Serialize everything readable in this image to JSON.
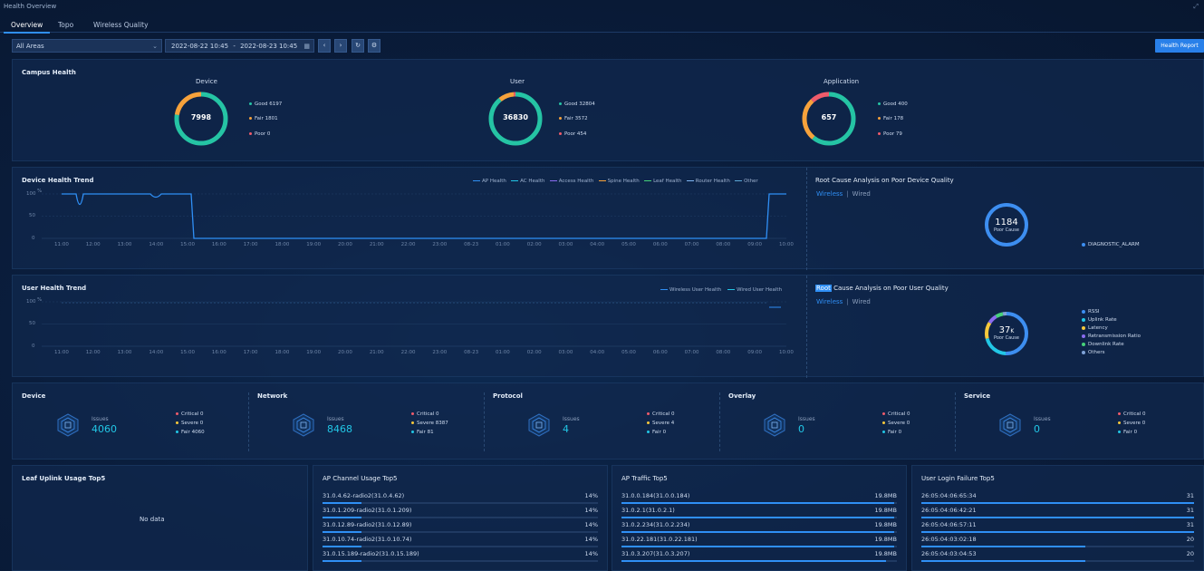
{
  "window": {
    "title": "Health Overview"
  },
  "tabs": [
    {
      "label": "Overview",
      "active": true
    },
    {
      "label": "Topo",
      "active": false
    },
    {
      "label": "Wireless Quality",
      "active": false
    }
  ],
  "toolbar": {
    "area_select": "All Areas",
    "date_start": "2022-08-22 10:45",
    "date_sep": "-",
    "date_end": "2022-08-23 10:45",
    "report_label": "Health Report"
  },
  "campus": {
    "title": "Campus Health",
    "device": {
      "title": "Device",
      "total": "7998",
      "good": "Good 6197",
      "fair": "Fair 1801",
      "poor": "Poor 0",
      "good_v": 6197,
      "fair_v": 1801,
      "poor_v": 0
    },
    "user": {
      "title": "User",
      "total": "36830",
      "good": "Good 32804",
      "fair": "Fair 3572",
      "poor": "Poor 454",
      "good_v": 32804,
      "fair_v": 3572,
      "poor_v": 454
    },
    "application": {
      "title": "Application",
      "total": "657",
      "good": "Good 400",
      "fair": "Fair 178",
      "poor": "Poor 79",
      "good_v": 400,
      "fair_v": 178,
      "poor_v": 79
    }
  },
  "colors": {
    "good": "#25c4a4",
    "fair": "#f7a23b",
    "poor": "#ef5b6b",
    "accent": "#2f8ff5",
    "cyan": "#22c7e6"
  },
  "device_trend": {
    "title": "Device Health Trend",
    "legend": [
      "AP Health",
      "AC Health",
      "Access Health",
      "Spine Health",
      "Leaf Health",
      "Router Health",
      "Other"
    ],
    "y_ticks": [
      "100",
      "50",
      "0"
    ],
    "y_unit": "%",
    "x_ticks": [
      "11:00",
      "12:00",
      "13:00",
      "14:00",
      "15:00",
      "16:00",
      "17:00",
      "18:00",
      "19:00",
      "20:00",
      "21:00",
      "22:00",
      "23:00",
      "08-23",
      "01:00",
      "02:00",
      "03:00",
      "04:00",
      "05:00",
      "06:00",
      "07:00",
      "08:00",
      "09:00",
      "10:00"
    ]
  },
  "user_trend": {
    "title": "User Health Trend",
    "legend": [
      "Wireless User Health",
      "Wired User Health"
    ],
    "y_ticks": [
      "100",
      "50",
      "0"
    ],
    "y_unit": "%",
    "x_ticks": [
      "11:00",
      "12:00",
      "13:00",
      "14:00",
      "15:00",
      "16:00",
      "17:00",
      "18:00",
      "19:00",
      "20:00",
      "21:00",
      "22:00",
      "23:00",
      "08-23",
      "01:00",
      "02:00",
      "03:00",
      "04:00",
      "05:00",
      "06:00",
      "07:00",
      "08:00",
      "09:00",
      "10:00"
    ]
  },
  "rca_device": {
    "title": "Root Cause Analysis on Poor Device Quality",
    "tab_wireless": "Wireless",
    "tab_sep": "|",
    "tab_wired": "Wired",
    "value": "1184",
    "sublabel": "Poor Cause",
    "legend": [
      {
        "label": "DIAGNOSTIC_ALARM",
        "color": "#3d8ef0"
      }
    ]
  },
  "rca_user": {
    "title_prefix": "Root",
    "title_rest": " Cause Analysis on Poor User Quality",
    "tab_wireless": "Wireless",
    "tab_sep": "|",
    "tab_wired": "Wired",
    "value": "37",
    "value_unit": "K",
    "sublabel": "Poor Cause",
    "legend": [
      {
        "label": "RSSI",
        "color": "#3d8ef0"
      },
      {
        "label": "Uplink Rate",
        "color": "#22c7e6"
      },
      {
        "label": "Latency",
        "color": "#f7c83b"
      },
      {
        "label": "Retransmission Ratio",
        "color": "#8a6cf0"
      },
      {
        "label": "Downlink Rate",
        "color": "#46d27a"
      },
      {
        "label": "Others",
        "color": "#7fa2d6"
      }
    ]
  },
  "issues": [
    {
      "title": "Device",
      "label": "Issues",
      "count": "4060",
      "critical": "Critical  0",
      "severe": "Severe  0",
      "fair": "Fair  4060"
    },
    {
      "title": "Network",
      "label": "Issues",
      "count": "8468",
      "critical": "Critical  0",
      "severe": "Severe  8387",
      "fair": "Fair  81"
    },
    {
      "title": "Protocol",
      "label": "Issues",
      "count": "4",
      "critical": "Critical  0",
      "severe": "Severe  4",
      "fair": "Fair  0"
    },
    {
      "title": "Overlay",
      "label": "Issues",
      "count": "0",
      "critical": "Critical  0",
      "severe": "Severe  0",
      "fair": "Fair  0"
    },
    {
      "title": "Service",
      "label": "Issues",
      "count": "0",
      "critical": "Critical  0",
      "severe": "Severe  0",
      "fair": "Fair  0"
    }
  ],
  "leaf_uplink": {
    "title": "Leaf Uplink Usage Top5",
    "empty": "No data"
  },
  "ap_channel": {
    "title": "AP Channel Usage Top5",
    "rows": [
      {
        "name": "31.0.4.62-radio2(31.0.4.62)",
        "value": "14%",
        "frac": 0.14
      },
      {
        "name": "31.0.1.209-radio2(31.0.1.209)",
        "value": "14%",
        "frac": 0.14
      },
      {
        "name": "31.0.12.89-radio2(31.0.12.89)",
        "value": "14%",
        "frac": 0.14
      },
      {
        "name": "31.0.10.74-radio2(31.0.10.74)",
        "value": "14%",
        "frac": 0.14
      },
      {
        "name": "31.0.15.189-radio2(31.0.15.189)",
        "value": "14%",
        "frac": 0.14
      }
    ]
  },
  "ap_traffic": {
    "title": "AP Traffic Top5",
    "rows": [
      {
        "name": "31.0.0.184(31.0.0.184)",
        "value": "19.8MB",
        "frac": 0.99
      },
      {
        "name": "31.0.2.1(31.0.2.1)",
        "value": "19.8MB",
        "frac": 0.99
      },
      {
        "name": "31.0.2.234(31.0.2.234)",
        "value": "19.8MB",
        "frac": 0.99
      },
      {
        "name": "31.0.22.181(31.0.22.181)",
        "value": "19.8MB",
        "frac": 0.99
      },
      {
        "name": "31.0.3.207(31.0.3.207)",
        "value": "19.8MB",
        "frac": 0.96
      }
    ]
  },
  "login_failure": {
    "title": "User Login Failure Top5",
    "rows": [
      {
        "name": "26:05:04:06:65:34",
        "value": "31",
        "frac": 1.0
      },
      {
        "name": "26:05:04:06:42:21",
        "value": "31",
        "frac": 1.0
      },
      {
        "name": "26:05:04:06:57:11",
        "value": "31",
        "frac": 1.0
      },
      {
        "name": "26:05:04:03:02:18",
        "value": "20",
        "frac": 0.6
      },
      {
        "name": "26:05:04:03:04:53",
        "value": "20",
        "frac": 0.6
      }
    ]
  }
}
